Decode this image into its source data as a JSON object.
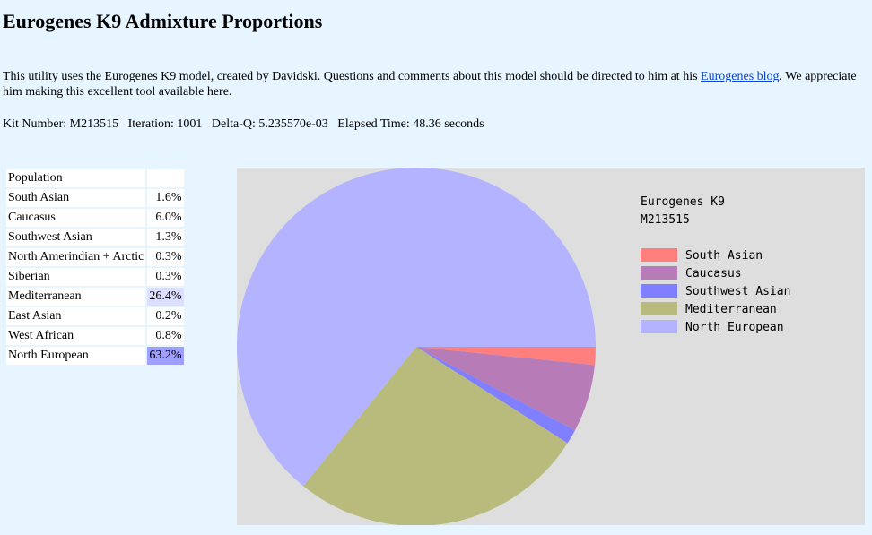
{
  "page": {
    "title": "Eurogenes K9 Admixture Proportions",
    "intro_part1": "This utility uses the Eurogenes K9 model, created by Davidski. Questions and comments about this model should be directed to him at his ",
    "intro_link": "Eurogenes blog",
    "intro_part2": ". We appreciate him making this excellent tool available here.",
    "kit_line": "Kit Number: M213515   Iteration: 1001   Delta-Q: 5.235570e-03   Elapsed Time: 48.36 seconds"
  },
  "table": {
    "header": "Population",
    "rows": [
      {
        "name": "South Asian",
        "value": "1.6%"
      },
      {
        "name": "Caucasus",
        "value": "6.0%"
      },
      {
        "name": "Southwest Asian",
        "value": "1.3%"
      },
      {
        "name": "North Amerindian + Arctic",
        "value": "0.3%"
      },
      {
        "name": "Siberian",
        "value": "0.3%"
      },
      {
        "name": "Mediterranean",
        "value": "26.4%",
        "highlight": "#dedeff"
      },
      {
        "name": "East Asian",
        "value": "0.2%"
      },
      {
        "name": "West African",
        "value": "0.8%"
      },
      {
        "name": "North European",
        "value": "63.2%",
        "highlight": "#9f9fff"
      }
    ]
  },
  "chart_data": {
    "type": "pie",
    "title": "Eurogenes K9",
    "subtitle": "M213515",
    "legend_position": "top-right",
    "background": "#dedede",
    "slices": [
      {
        "label": "South Asian",
        "value": 1.6,
        "color": "#ff7f7f"
      },
      {
        "label": "Caucasus",
        "value": 6.0,
        "color": "#b77bb7"
      },
      {
        "label": "Southwest Asian",
        "value": 1.3,
        "color": "#7f7fff"
      },
      {
        "label": "Mediterranean",
        "value": 26.4,
        "color": "#b9bb7d"
      },
      {
        "label": "North European",
        "value": 63.2,
        "color": "#b3b3ff"
      }
    ]
  }
}
